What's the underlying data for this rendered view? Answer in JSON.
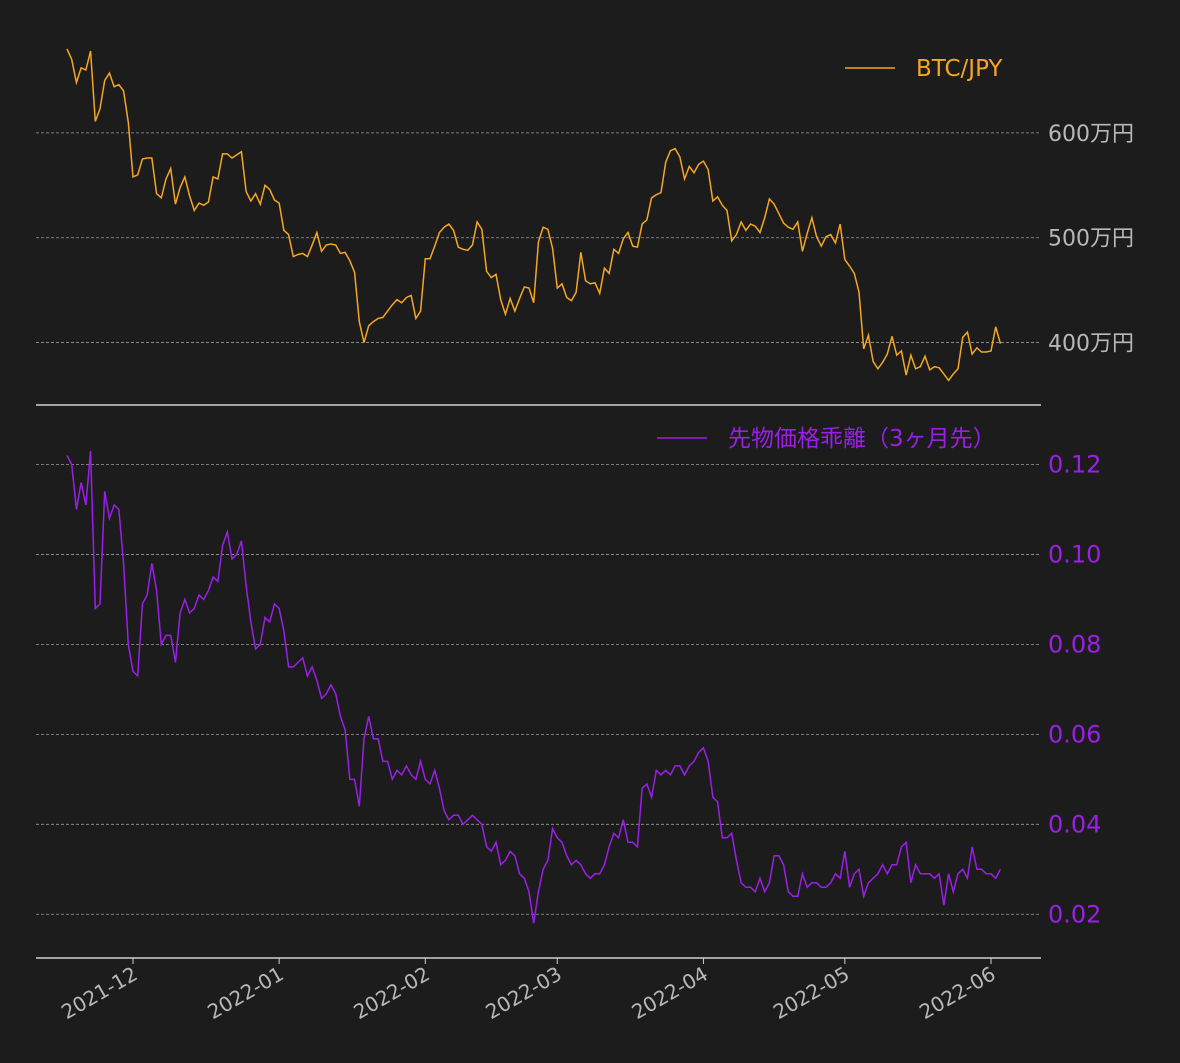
{
  "colors": {
    "background": "#1c1c1c",
    "grid": "#9a9a9a",
    "axis": "#d0d0d0",
    "tick_text": "#b8b8b8",
    "btc": "#f5a623",
    "spread": "#9b1fe8"
  },
  "chart_data": [
    {
      "type": "line",
      "series": [
        {
          "name": "BTC/JPY",
          "color": "#f5a623"
        }
      ],
      "ylim": [
        3500000,
        7000000
      ],
      "yticks": [
        4000000,
        5000000,
        6000000
      ],
      "ytick_labels": [
        "400万円",
        "500万円",
        "600万円"
      ],
      "grid": true,
      "legend": "top-right",
      "x_start": "2021-11-17",
      "y": [
        6800000,
        6700000,
        6480000,
        6620000,
        6600000,
        6780000,
        6110000,
        6230000,
        6500000,
        6570000,
        6440000,
        6460000,
        6400000,
        6100000,
        5580000,
        5600000,
        5750000,
        5760000,
        5760000,
        5420000,
        5380000,
        5560000,
        5660000,
        5320000,
        5480000,
        5580000,
        5400000,
        5260000,
        5330000,
        5310000,
        5340000,
        5580000,
        5560000,
        5800000,
        5800000,
        5760000,
        5790000,
        5820000,
        5440000,
        5350000,
        5420000,
        5320000,
        5500000,
        5460000,
        5360000,
        5330000,
        5070000,
        5030000,
        4820000,
        4840000,
        4850000,
        4820000,
        4930000,
        5050000,
        4870000,
        4930000,
        4940000,
        4930000,
        4850000,
        4860000,
        4780000,
        4670000,
        4200000,
        4000000,
        4160000,
        4200000,
        4230000,
        4240000,
        4300000,
        4360000,
        4410000,
        4380000,
        4430000,
        4450000,
        4230000,
        4300000,
        4800000,
        4800000,
        4920000,
        5050000,
        5100000,
        5130000,
        5070000,
        4910000,
        4890000,
        4880000,
        4930000,
        5150000,
        5080000,
        4680000,
        4620000,
        4650000,
        4410000,
        4270000,
        4420000,
        4300000,
        4420000,
        4530000,
        4520000,
        4380000,
        4960000,
        5100000,
        5080000,
        4900000,
        4520000,
        4560000,
        4430000,
        4400000,
        4480000,
        4860000,
        4590000,
        4560000,
        4570000,
        4470000,
        4710000,
        4660000,
        4890000,
        4850000,
        4990000,
        5050000,
        4920000,
        4910000,
        5130000,
        5170000,
        5380000,
        5410000,
        5430000,
        5720000,
        5830000,
        5850000,
        5770000,
        5560000,
        5680000,
        5620000,
        5700000,
        5730000,
        5650000,
        5350000,
        5390000,
        5310000,
        5260000,
        4970000,
        5030000,
        5150000,
        5070000,
        5130000,
        5110000,
        5050000,
        5190000,
        5370000,
        5320000,
        5230000,
        5140000,
        5100000,
        5080000,
        5150000,
        4870000,
        5040000,
        5190000,
        5010000,
        4920000,
        5010000,
        5030000,
        4950000,
        5130000,
        4790000,
        4730000,
        4660000,
        4480000,
        3940000,
        4070000,
        3820000,
        3750000,
        3810000,
        3890000,
        4060000,
        3880000,
        3920000,
        3690000,
        3880000,
        3750000,
        3770000,
        3870000,
        3740000,
        3770000,
        3760000,
        3700000,
        3640000,
        3700000,
        3750000,
        4050000,
        4100000,
        3890000,
        3950000,
        3910000,
        3910000,
        3920000,
        4150000,
        3990000
      ]
    },
    {
      "type": "line",
      "series": [
        {
          "name": "先物価格乖離（3ヶ月先）",
          "color": "#9b1fe8"
        }
      ],
      "ylim": [
        0.0125,
        0.131
      ],
      "yticks": [
        0.02,
        0.04,
        0.06,
        0.08,
        0.1,
        0.12
      ],
      "ytick_labels": [
        "0.02",
        "0.04",
        "0.06",
        "0.08",
        "0.10",
        "0.12"
      ],
      "grid": true,
      "legend": "top-right",
      "x_start": "2021-11-17",
      "y": [
        0.122,
        0.12,
        0.11,
        0.116,
        0.111,
        0.123,
        0.088,
        0.089,
        0.114,
        0.108,
        0.111,
        0.11,
        0.098,
        0.08,
        0.074,
        0.073,
        0.089,
        0.091,
        0.098,
        0.092,
        0.08,
        0.082,
        0.082,
        0.076,
        0.087,
        0.09,
        0.087,
        0.088,
        0.091,
        0.09,
        0.092,
        0.095,
        0.094,
        0.102,
        0.105,
        0.099,
        0.1,
        0.103,
        0.093,
        0.085,
        0.079,
        0.08,
        0.086,
        0.085,
        0.089,
        0.088,
        0.083,
        0.075,
        0.075,
        0.076,
        0.077,
        0.073,
        0.075,
        0.072,
        0.068,
        0.069,
        0.071,
        0.069,
        0.064,
        0.061,
        0.05,
        0.05,
        0.044,
        0.059,
        0.064,
        0.059,
        0.059,
        0.054,
        0.054,
        0.05,
        0.052,
        0.051,
        0.053,
        0.051,
        0.05,
        0.054,
        0.05,
        0.049,
        0.052,
        0.048,
        0.043,
        0.041,
        0.042,
        0.042,
        0.04,
        0.041,
        0.042,
        0.041,
        0.04,
        0.035,
        0.034,
        0.036,
        0.031,
        0.032,
        0.034,
        0.033,
        0.029,
        0.028,
        0.025,
        0.018,
        0.025,
        0.03,
        0.032,
        0.039,
        0.037,
        0.036,
        0.033,
        0.031,
        0.032,
        0.031,
        0.029,
        0.028,
        0.029,
        0.029,
        0.031,
        0.035,
        0.038,
        0.037,
        0.041,
        0.036,
        0.036,
        0.035,
        0.048,
        0.049,
        0.046,
        0.052,
        0.051,
        0.052,
        0.051,
        0.053,
        0.053,
        0.051,
        0.053,
        0.054,
        0.056,
        0.057,
        0.054,
        0.046,
        0.045,
        0.037,
        0.037,
        0.038,
        0.032,
        0.027,
        0.026,
        0.026,
        0.025,
        0.028,
        0.025,
        0.027,
        0.033,
        0.033,
        0.031,
        0.025,
        0.024,
        0.024,
        0.029,
        0.026,
        0.027,
        0.027,
        0.026,
        0.026,
        0.027,
        0.029,
        0.028,
        0.034,
        0.026,
        0.029,
        0.03,
        0.024,
        0.027,
        0.028,
        0.029,
        0.031,
        0.029,
        0.031,
        0.031,
        0.035,
        0.036,
        0.027,
        0.031,
        0.029,
        0.029,
        0.029,
        0.028,
        0.029,
        0.022,
        0.029,
        0.025,
        0.029,
        0.03,
        0.028,
        0.035,
        0.03,
        0.03,
        0.029,
        0.029,
        0.028,
        0.03
      ]
    }
  ],
  "x_axis": {
    "ticks": [
      "2021-12-01",
      "2022-01-01",
      "2022-02-01",
      "2022-03-01",
      "2022-04-01",
      "2022-05-01",
      "2022-06-01"
    ],
    "tick_labels": [
      "2021-12",
      "2022-01",
      "2022-02",
      "2022-03",
      "2022-04",
      "2022-05",
      "2022-06"
    ]
  }
}
